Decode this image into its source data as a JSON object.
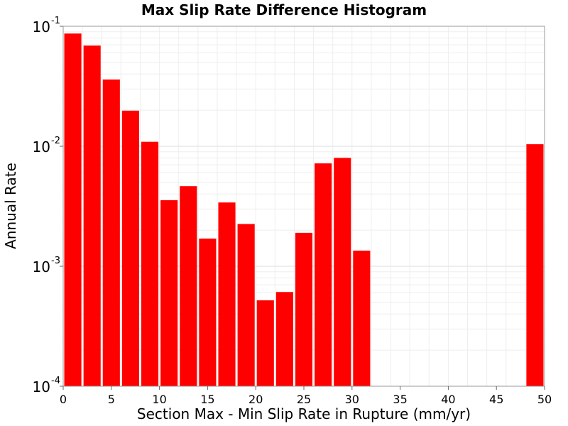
{
  "chart_data": {
    "type": "bar",
    "title": "Max Slip Rate Difference Histogram",
    "xlabel": "Section Max - Min Slip Rate in Rupture (mm/yr)",
    "ylabel": "Annual Rate",
    "xlim": [
      0,
      50
    ],
    "ylim": [
      0.0001,
      0.1
    ],
    "yscale": "log",
    "grid": true,
    "bar_color": "#ff0000",
    "bin_width": 2,
    "xticks": [
      "0",
      "5",
      "10",
      "15",
      "20",
      "25",
      "30",
      "35",
      "40",
      "45",
      "50"
    ],
    "yticks": [
      {
        "base": "10",
        "exp": "-1"
      },
      {
        "base": "10",
        "exp": "-2"
      },
      {
        "base": "10",
        "exp": "-3"
      },
      {
        "base": "10",
        "exp": "-4"
      }
    ],
    "bins": [
      {
        "x": 1,
        "y": 0.087
      },
      {
        "x": 3,
        "y": 0.069
      },
      {
        "x": 5,
        "y": 0.036
      },
      {
        "x": 7,
        "y": 0.0198
      },
      {
        "x": 9,
        "y": 0.0109
      },
      {
        "x": 11,
        "y": 0.00355
      },
      {
        "x": 13,
        "y": 0.00465
      },
      {
        "x": 15,
        "y": 0.0017
      },
      {
        "x": 17,
        "y": 0.0034
      },
      {
        "x": 19,
        "y": 0.00225
      },
      {
        "x": 21,
        "y": 0.00052
      },
      {
        "x": 23,
        "y": 0.00061
      },
      {
        "x": 25,
        "y": 0.0019
      },
      {
        "x": 27,
        "y": 0.0072
      },
      {
        "x": 29,
        "y": 0.008
      },
      {
        "x": 31,
        "y": 0.00135
      },
      {
        "x": 49,
        "y": 0.0104
      }
    ]
  }
}
